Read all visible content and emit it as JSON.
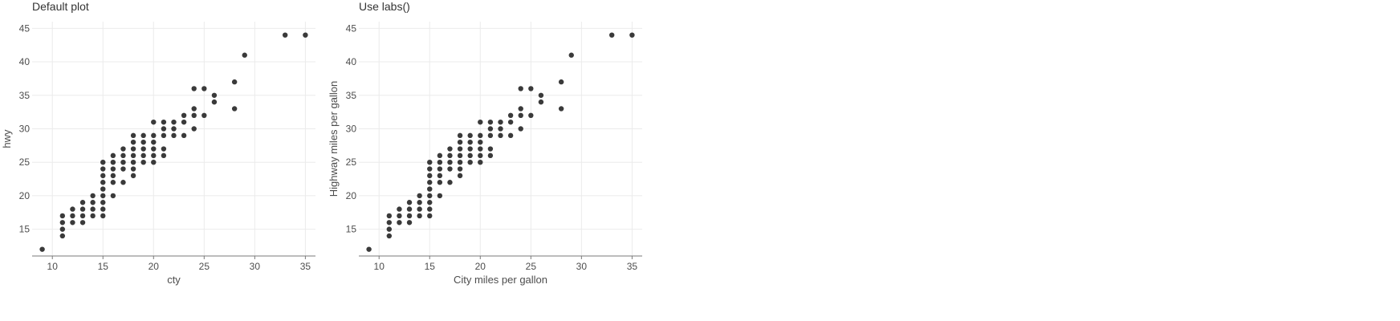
{
  "chart_data": [
    {
      "type": "scatter",
      "title": "Default plot",
      "xlabel": "cty",
      "ylabel": "hwy",
      "xlim": [
        8,
        36
      ],
      "ylim": [
        11,
        46
      ],
      "xticks": [
        10,
        15,
        20,
        25,
        30,
        35
      ],
      "yticks": [
        15,
        20,
        25,
        30,
        35,
        40,
        45
      ],
      "grid": true,
      "point_color": "#3a3a3a",
      "points": [
        [
          9,
          12
        ],
        [
          11,
          14
        ],
        [
          11,
          15
        ],
        [
          11,
          16
        ],
        [
          11,
          17
        ],
        [
          12,
          16
        ],
        [
          12,
          17
        ],
        [
          12,
          18
        ],
        [
          13,
          16
        ],
        [
          13,
          17
        ],
        [
          13,
          18
        ],
        [
          13,
          19
        ],
        [
          14,
          17
        ],
        [
          14,
          18
        ],
        [
          14,
          19
        ],
        [
          14,
          20
        ],
        [
          15,
          17
        ],
        [
          15,
          18
        ],
        [
          15,
          19
        ],
        [
          15,
          20
        ],
        [
          15,
          21
        ],
        [
          15,
          22
        ],
        [
          15,
          23
        ],
        [
          15,
          24
        ],
        [
          15,
          25
        ],
        [
          16,
          20
        ],
        [
          16,
          22
        ],
        [
          16,
          23
        ],
        [
          16,
          24
        ],
        [
          16,
          25
        ],
        [
          16,
          26
        ],
        [
          17,
          22
        ],
        [
          17,
          24
        ],
        [
          17,
          25
        ],
        [
          17,
          26
        ],
        [
          17,
          27
        ],
        [
          18,
          23
        ],
        [
          18,
          24
        ],
        [
          18,
          25
        ],
        [
          18,
          26
        ],
        [
          18,
          27
        ],
        [
          18,
          28
        ],
        [
          18,
          29
        ],
        [
          19,
          25
        ],
        [
          19,
          26
        ],
        [
          19,
          27
        ],
        [
          19,
          28
        ],
        [
          19,
          29
        ],
        [
          20,
          25
        ],
        [
          20,
          26
        ],
        [
          20,
          27
        ],
        [
          20,
          28
        ],
        [
          20,
          29
        ],
        [
          20,
          31
        ],
        [
          21,
          26
        ],
        [
          21,
          27
        ],
        [
          21,
          29
        ],
        [
          21,
          30
        ],
        [
          21,
          31
        ],
        [
          22,
          29
        ],
        [
          22,
          30
        ],
        [
          22,
          31
        ],
        [
          23,
          29
        ],
        [
          23,
          31
        ],
        [
          23,
          32
        ],
        [
          24,
          30
        ],
        [
          24,
          32
        ],
        [
          24,
          33
        ],
        [
          24,
          36
        ],
        [
          25,
          32
        ],
        [
          25,
          36
        ],
        [
          26,
          34
        ],
        [
          26,
          35
        ],
        [
          28,
          33
        ],
        [
          28,
          37
        ],
        [
          29,
          41
        ],
        [
          33,
          44
        ],
        [
          35,
          44
        ]
      ]
    },
    {
      "type": "scatter",
      "title": "Use labs()",
      "xlabel": "City miles per gallon",
      "ylabel": "Highway miles per gallon",
      "xlim": [
        8,
        36
      ],
      "ylim": [
        11,
        46
      ],
      "xticks": [
        10,
        15,
        20,
        25,
        30,
        35
      ],
      "yticks": [
        15,
        20,
        25,
        30,
        35,
        40,
        45
      ],
      "grid": true,
      "point_color": "#3a3a3a",
      "points": [
        [
          9,
          12
        ],
        [
          11,
          14
        ],
        [
          11,
          15
        ],
        [
          11,
          16
        ],
        [
          11,
          17
        ],
        [
          12,
          16
        ],
        [
          12,
          17
        ],
        [
          12,
          18
        ],
        [
          13,
          16
        ],
        [
          13,
          17
        ],
        [
          13,
          18
        ],
        [
          13,
          19
        ],
        [
          14,
          17
        ],
        [
          14,
          18
        ],
        [
          14,
          19
        ],
        [
          14,
          20
        ],
        [
          15,
          17
        ],
        [
          15,
          18
        ],
        [
          15,
          19
        ],
        [
          15,
          20
        ],
        [
          15,
          21
        ],
        [
          15,
          22
        ],
        [
          15,
          23
        ],
        [
          15,
          24
        ],
        [
          15,
          25
        ],
        [
          16,
          20
        ],
        [
          16,
          22
        ],
        [
          16,
          23
        ],
        [
          16,
          24
        ],
        [
          16,
          25
        ],
        [
          16,
          26
        ],
        [
          17,
          22
        ],
        [
          17,
          24
        ],
        [
          17,
          25
        ],
        [
          17,
          26
        ],
        [
          17,
          27
        ],
        [
          18,
          23
        ],
        [
          18,
          24
        ],
        [
          18,
          25
        ],
        [
          18,
          26
        ],
        [
          18,
          27
        ],
        [
          18,
          28
        ],
        [
          18,
          29
        ],
        [
          19,
          25
        ],
        [
          19,
          26
        ],
        [
          19,
          27
        ],
        [
          19,
          28
        ],
        [
          19,
          29
        ],
        [
          20,
          25
        ],
        [
          20,
          26
        ],
        [
          20,
          27
        ],
        [
          20,
          28
        ],
        [
          20,
          29
        ],
        [
          20,
          31
        ],
        [
          21,
          26
        ],
        [
          21,
          27
        ],
        [
          21,
          29
        ],
        [
          21,
          30
        ],
        [
          21,
          31
        ],
        [
          22,
          29
        ],
        [
          22,
          30
        ],
        [
          22,
          31
        ],
        [
          23,
          29
        ],
        [
          23,
          31
        ],
        [
          23,
          32
        ],
        [
          24,
          30
        ],
        [
          24,
          32
        ],
        [
          24,
          33
        ],
        [
          24,
          36
        ],
        [
          25,
          32
        ],
        [
          25,
          36
        ],
        [
          26,
          34
        ],
        [
          26,
          35
        ],
        [
          28,
          33
        ],
        [
          28,
          37
        ],
        [
          29,
          41
        ],
        [
          33,
          44
        ],
        [
          35,
          44
        ]
      ]
    }
  ]
}
